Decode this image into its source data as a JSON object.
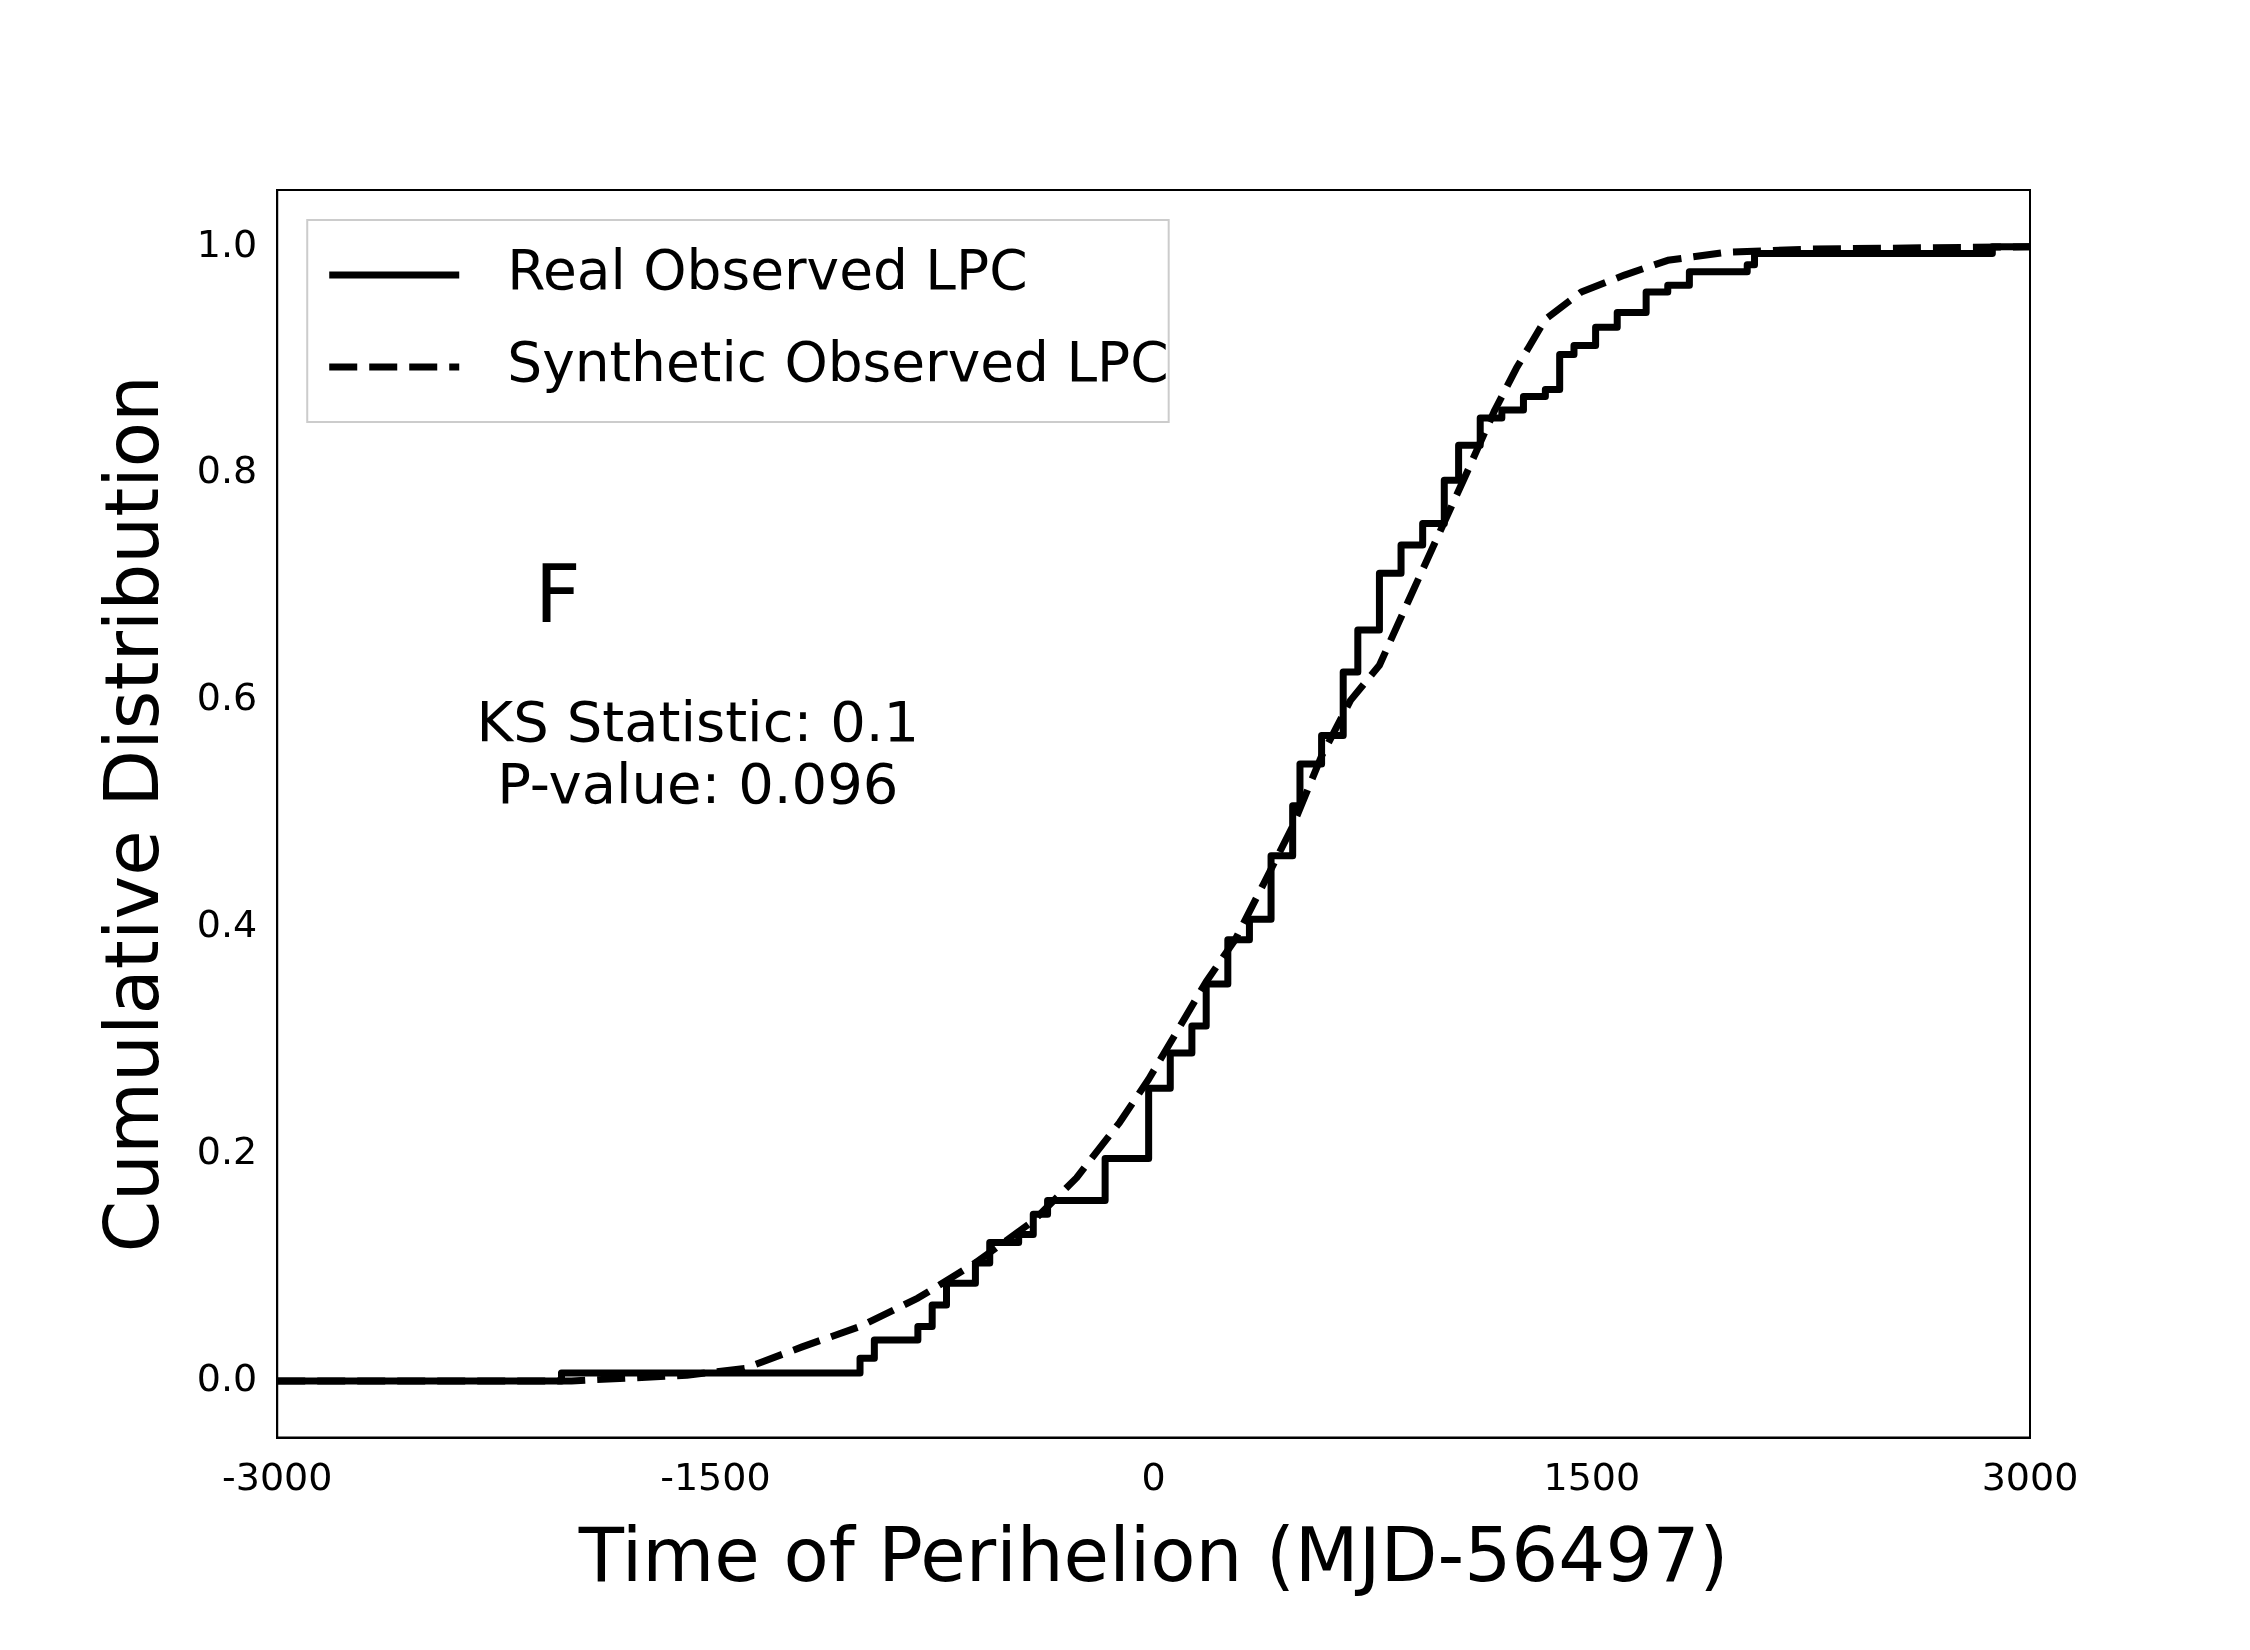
{
  "chart_data": {
    "type": "line",
    "xlabel": "Time of Perihelion (MJD-56497)",
    "ylabel": "Cumulative Distribution",
    "annotations": [
      "F",
      "KS Statistic: 0.1",
      "P-value: 0.096"
    ],
    "xlim": [
      -3000,
      3000
    ],
    "xticks": [
      -3000,
      -1500,
      0,
      1500,
      3000
    ],
    "ylim": [
      -0.05,
      1.05
    ],
    "yticks": [
      {
        "value": 0,
        "label": "0.0"
      },
      {
        "value": 0.2,
        "label": "0.2"
      },
      {
        "value": 0.4,
        "label": "0.4"
      },
      {
        "value": 0.6,
        "label": "0.6"
      },
      {
        "value": 0.8,
        "label": "0.8"
      },
      {
        "value": 1,
        "label": "1.0"
      }
    ],
    "legend": "top left",
    "series": [
      {
        "name": "Real Observed LPC",
        "type": "step",
        "line_style": "solid",
        "color": "#000000",
        "x": [
          -3000,
          -2027,
          -1079,
          -1005,
          -956,
          -807,
          -758,
          -709,
          -610,
          -561,
          -462,
          -412,
          -363,
          -166,
          -17,
          57,
          131,
          180,
          254,
          328,
          402,
          476,
          501,
          575,
          649,
          699,
          773,
          847,
          921,
          995,
          1044,
          1118,
          1192,
          1266,
          1341,
          1390,
          1439,
          1513,
          1587,
          1686,
          1760,
          1834,
          2032,
          2057,
          2871,
          3000
        ],
        "values": [
          0,
          0.007,
          0.007,
          0.02,
          0.036,
          0.048,
          0.067,
          0.086,
          0.104,
          0.122,
          0.129,
          0.147,
          0.159,
          0.196,
          0.258,
          0.289,
          0.313,
          0.35,
          0.389,
          0.407,
          0.463,
          0.507,
          0.544,
          0.569,
          0.625,
          0.662,
          0.712,
          0.737,
          0.756,
          0.794,
          0.825,
          0.849,
          0.856,
          0.868,
          0.874,
          0.905,
          0.913,
          0.929,
          0.942,
          0.96,
          0.966,
          0.978,
          0.984,
          0.994,
          1.0,
          1.0
        ]
      },
      {
        "name": "Synthetic Observed LPC",
        "line_style": "dashed",
        "color": "#000000",
        "x": [
          -3000,
          -1993,
          -1598,
          -1400,
          -1203,
          -1005,
          -807,
          -610,
          -412,
          -264,
          -116,
          -17,
          82,
          180,
          279,
          378,
          476,
          575,
          674,
          773,
          871,
          970,
          1069,
          1168,
          1242,
          1341,
          1464,
          1612,
          1760,
          1958,
          2254,
          3000
        ],
        "values": [
          0,
          0,
          0.005,
          0.011,
          0.03,
          0.048,
          0.073,
          0.104,
          0.141,
          0.179,
          0.228,
          0.266,
          0.309,
          0.352,
          0.389,
          0.439,
          0.489,
          0.551,
          0.6,
          0.631,
          0.687,
          0.743,
          0.799,
          0.856,
          0.893,
          0.936,
          0.96,
          0.975,
          0.988,
          0.995,
          0.998,
          1.0
        ]
      }
    ]
  }
}
